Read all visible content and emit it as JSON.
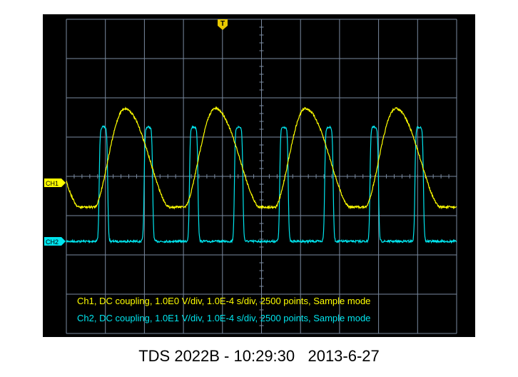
{
  "markers": {
    "trigger": "T",
    "ch1": "CH1",
    "ch2": "CH2"
  },
  "channels": [
    {
      "info": "Ch1, DC coupling, 1.0E0 V/div, 1.0E-4 s/div, 2500 points, Sample mode"
    },
    {
      "info": "Ch2, DC coupling, 1.0E1 V/div, 1.0E-4 s/div, 2500 points, Sample mode"
    }
  ],
  "caption": "TDS 2022B - 10:29:30   2013-6-27"
}
